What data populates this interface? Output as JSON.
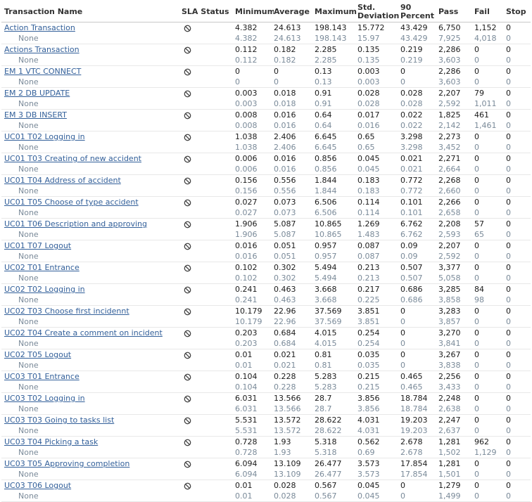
{
  "header": {
    "name": "Transaction Name",
    "sla": "SLA Status",
    "min": "Minimum",
    "avg": "Average",
    "max": "Maximum",
    "std": "Std. Deviation",
    "p90": "90 Percent",
    "pass": "Pass",
    "fail": "Fail",
    "stop": "Stop"
  },
  "sub_label": "None",
  "sla_icon": "not-applicable-icon",
  "colors": {
    "link": "#33609a",
    "sub_text": "#7a8a99",
    "text": "#1a1a1a"
  },
  "transactions": [
    {
      "name": "Action Transaction",
      "main": [
        "4.382",
        "24.613",
        "198.143",
        "15.772",
        "43.429",
        "6,750",
        "1,152",
        "0"
      ],
      "sub": [
        "4.382",
        "24.613",
        "198.143",
        "15.97",
        "43.429",
        "7,925",
        "4,018",
        "0"
      ]
    },
    {
      "name": "Actions Transaction",
      "main": [
        "0.112",
        "0.182",
        "2.285",
        "0.135",
        "0.219",
        "2,286",
        "0",
        "0"
      ],
      "sub": [
        "0.112",
        "0.182",
        "2.285",
        "0.135",
        "0.219",
        "3,603",
        "0",
        "0"
      ]
    },
    {
      "name": "EM 1 VTC CONNECT",
      "main": [
        "0",
        "0",
        "0.13",
        "0.003",
        "0",
        "2,286",
        "0",
        "0"
      ],
      "sub": [
        "0",
        "0",
        "0.13",
        "0.003",
        "0",
        "3,603",
        "0",
        "0"
      ]
    },
    {
      "name": "EM 2 DB UPDATE",
      "main": [
        "0.003",
        "0.018",
        "0.91",
        "0.028",
        "0.028",
        "2,207",
        "79",
        "0"
      ],
      "sub": [
        "0.003",
        "0.018",
        "0.91",
        "0.028",
        "0.028",
        "2,592",
        "1,011",
        "0"
      ]
    },
    {
      "name": "EM 3 DB INSERT",
      "main": [
        "0.008",
        "0.016",
        "0.64",
        "0.017",
        "0.022",
        "1,825",
        "461",
        "0"
      ],
      "sub": [
        "0.008",
        "0.016",
        "0.64",
        "0.016",
        "0.022",
        "2,142",
        "1,461",
        "0"
      ]
    },
    {
      "name": "UC01 T02 Logging in",
      "main": [
        "1.038",
        "2.406",
        "6.645",
        "0.65",
        "3.298",
        "2,273",
        "0",
        "0"
      ],
      "sub": [
        "1.038",
        "2.406",
        "6.645",
        "0.65",
        "3.298",
        "3,452",
        "0",
        "0"
      ]
    },
    {
      "name": "UC01 T03 Creating of new accident",
      "main": [
        "0.006",
        "0.016",
        "0.856",
        "0.045",
        "0.021",
        "2,271",
        "0",
        "0"
      ],
      "sub": [
        "0.006",
        "0.016",
        "0.856",
        "0.045",
        "0.021",
        "2,664",
        "0",
        "0"
      ]
    },
    {
      "name": "UC01 T04 Address of accident",
      "main": [
        "0.156",
        "0.556",
        "1.844",
        "0.183",
        "0.772",
        "2,268",
        "0",
        "0"
      ],
      "sub": [
        "0.156",
        "0.556",
        "1.844",
        "0.183",
        "0.772",
        "2,660",
        "0",
        "0"
      ]
    },
    {
      "name": "UC01 T05 Choose of type accident",
      "main": [
        "0.027",
        "0.073",
        "6.506",
        "0.114",
        "0.101",
        "2,266",
        "0",
        "0"
      ],
      "sub": [
        "0.027",
        "0.073",
        "6.506",
        "0.114",
        "0.101",
        "2,658",
        "0",
        "0"
      ]
    },
    {
      "name": "UC01 T06  Description and approving",
      "main": [
        "1.906",
        "5.087",
        "10.865",
        "1.269",
        "6.762",
        "2,208",
        "57",
        "0"
      ],
      "sub": [
        "1.906",
        "5.087",
        "10.865",
        "1.483",
        "6.762",
        "2,593",
        "65",
        "0"
      ]
    },
    {
      "name": "UC01 T07 Logout",
      "main": [
        "0.016",
        "0.051",
        "0.957",
        "0.087",
        "0.09",
        "2,207",
        "0",
        "0"
      ],
      "sub": [
        "0.016",
        "0.051",
        "0.957",
        "0.087",
        "0.09",
        "2,592",
        "0",
        "0"
      ]
    },
    {
      "name": "UC02 T01 Entrance",
      "main": [
        "0.102",
        "0.302",
        "5.494",
        "0.213",
        "0.507",
        "3,377",
        "0",
        "0"
      ],
      "sub": [
        "0.102",
        "0.302",
        "5.494",
        "0.213",
        "0.507",
        "5,058",
        "0",
        "0"
      ]
    },
    {
      "name": "UC02 T02 Logging in",
      "main": [
        "0.241",
        "0.463",
        "3.668",
        "0.217",
        "0.686",
        "3,285",
        "84",
        "0"
      ],
      "sub": [
        "0.241",
        "0.463",
        "3.668",
        "0.225",
        "0.686",
        "3,858",
        "98",
        "0"
      ]
    },
    {
      "name": "UC02 T03 Choose first incidennt",
      "main": [
        "10.179",
        "22.96",
        "37.569",
        "3.851",
        "0",
        "3,283",
        "0",
        "0"
      ],
      "sub": [
        "10.179",
        "22.96",
        "37.569",
        "3.851",
        "0",
        "3,857",
        "0",
        "0"
      ]
    },
    {
      "name": "UC02 T04 Create  a comment on incident",
      "main": [
        "0.203",
        "0.684",
        "4.015",
        "0.254",
        "0",
        "3,270",
        "0",
        "0"
      ],
      "sub": [
        "0.203",
        "0.684",
        "4.015",
        "0.254",
        "0",
        "3,841",
        "0",
        "0"
      ]
    },
    {
      "name": "UC02 T05 Logout",
      "main": [
        "0.01",
        "0.021",
        "0.81",
        "0.035",
        "0",
        "3,267",
        "0",
        "0"
      ],
      "sub": [
        "0.01",
        "0.021",
        "0.81",
        "0.035",
        "0",
        "3,838",
        "0",
        "0"
      ]
    },
    {
      "name": "UC03 T01 Entrance",
      "main": [
        "0.104",
        "0.228",
        "5.283",
        "0.215",
        "0.465",
        "2,256",
        "0",
        "0"
      ],
      "sub": [
        "0.104",
        "0.228",
        "5.283",
        "0.215",
        "0.465",
        "3,433",
        "0",
        "0"
      ]
    },
    {
      "name": "UC03 T02 Logging in",
      "main": [
        "6.031",
        "13.566",
        "28.7",
        "3.856",
        "18.784",
        "2,248",
        "0",
        "0"
      ],
      "sub": [
        "6.031",
        "13.566",
        "28.7",
        "3.856",
        "18.784",
        "2,638",
        "0",
        "0"
      ]
    },
    {
      "name": "UC03 T03 Going to tasks list",
      "main": [
        "5.531",
        "13.572",
        "28.622",
        "4.031",
        "19.203",
        "2,247",
        "0",
        "0"
      ],
      "sub": [
        "5.531",
        "13.572",
        "28.622",
        "4.031",
        "19.203",
        "2,637",
        "0",
        "0"
      ]
    },
    {
      "name": "UC03 T04 Picking a task",
      "main": [
        "0.728",
        "1.93",
        "5.318",
        "0.562",
        "2.678",
        "1,281",
        "962",
        "0"
      ],
      "sub": [
        "0.728",
        "1.93",
        "5.318",
        "0.69",
        "2.678",
        "1,502",
        "1,129",
        "0"
      ]
    },
    {
      "name": "UC03 T05 Approving completion",
      "main": [
        "6.094",
        "13.109",
        "26.477",
        "3.573",
        "17.854",
        "1,281",
        "0",
        "0"
      ],
      "sub": [
        "6.094",
        "13.109",
        "26.477",
        "3.573",
        "17.854",
        "1,501",
        "0",
        "0"
      ]
    },
    {
      "name": "UC03 T06 Logout",
      "main": [
        "0.01",
        "0.028",
        "0.567",
        "0.045",
        "0",
        "1,279",
        "0",
        "0"
      ],
      "sub": [
        "0.01",
        "0.028",
        "0.567",
        "0.045",
        "0",
        "1,499",
        "0",
        "0"
      ]
    }
  ]
}
